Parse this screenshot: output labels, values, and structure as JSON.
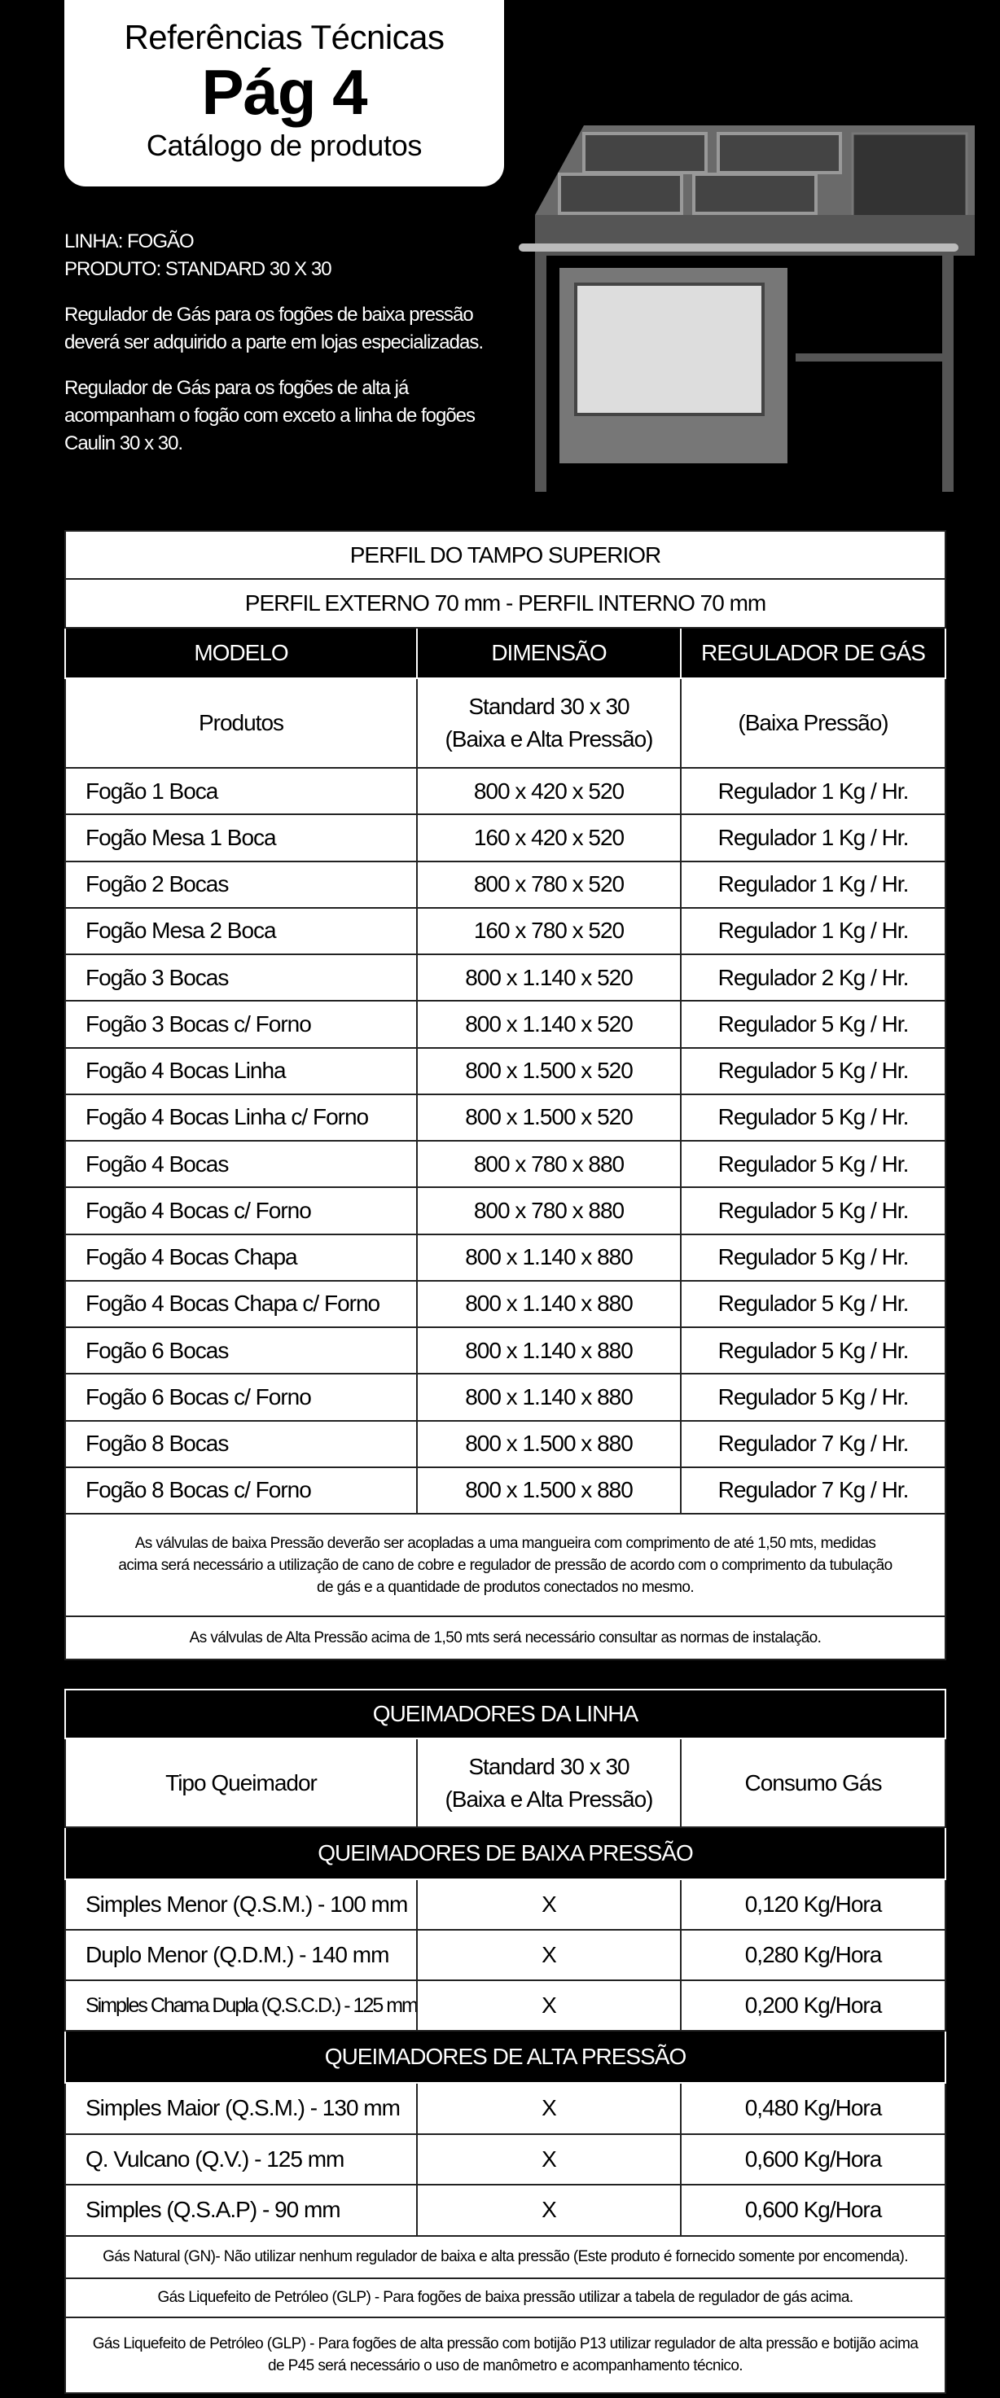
{
  "header": {
    "line1": "Referências Técnicas",
    "line2": "Pág 4",
    "line3": "Catálogo de produtos"
  },
  "intro": {
    "linha": "LINHA: FOGÃO",
    "produto": "PRODUTO: STANDARD 30 X 30",
    "p1": "Regulador de Gás para os fogões de baixa pressão deverá ser adquirido a parte em lojas especializadas.",
    "p2": "Regulador de Gás para os fogões de alta já acompanham o fogão com exceto a linha de fogões Caulin 30 x 30."
  },
  "table1": {
    "title": "PERFIL DO TAMPO SUPERIOR",
    "subtitle": "PERFIL EXTERNO 70 mm - PERFIL INTERNO 70 mm",
    "headers": [
      "MODELO",
      "DIMENSÃO",
      "REGULADOR DE GÁS"
    ],
    "subheaders": [
      "Produtos",
      "Standard 30 x 30",
      "(Baixa e Alta Pressão)",
      "(Baixa Pressão)"
    ],
    "rows": [
      [
        "Fogão 1 Boca",
        "800 x 420 x 520",
        "Regulador 1 Kg / Hr."
      ],
      [
        "Fogão Mesa 1 Boca",
        "160 x 420 x 520",
        "Regulador 1 Kg / Hr."
      ],
      [
        "Fogão 2 Bocas",
        "800 x 780 x 520",
        "Regulador 1 Kg / Hr."
      ],
      [
        "Fogão Mesa 2 Boca",
        "160 x 780 x 520",
        "Regulador 1 Kg / Hr."
      ],
      [
        "Fogão 3 Bocas",
        "800 x 1.140 x 520",
        "Regulador 2 Kg / Hr."
      ],
      [
        "Fogão 3 Bocas  c/ Forno",
        "800 x 1.140 x 520",
        "Regulador 5 Kg / Hr."
      ],
      [
        "Fogão 4 Bocas Linha",
        "800 x 1.500 x 520",
        "Regulador 5 Kg / Hr."
      ],
      [
        "Fogão 4 Bocas Linha  c/ Forno",
        "800 x 1.500 x 520",
        "Regulador 5 Kg / Hr."
      ],
      [
        "Fogão 4 Bocas",
        "800 x 780 x 880",
        "Regulador 5 Kg / Hr."
      ],
      [
        "Fogão 4 Bocas  c/ Forno",
        "800 x 780 x 880",
        "Regulador 5 Kg / Hr."
      ],
      [
        "Fogão 4 Bocas  Chapa",
        "800 x 1.140 x 880",
        "Regulador 5 Kg / Hr."
      ],
      [
        "Fogão 4 Bocas  Chapa  c/ Forno",
        "800 x 1.140 x 880",
        "Regulador 5 Kg / Hr."
      ],
      [
        "Fogão 6 Bocas",
        "800 x 1.140 x 880",
        "Regulador 5 Kg / Hr."
      ],
      [
        "Fogão 6 Bocas  c/ Forno",
        "800 x 1.140 x 880",
        "Regulador 5 Kg / Hr."
      ],
      [
        "Fogão 8 Bocas",
        "800 x 1.500 x 880",
        "Regulador 7 Kg / Hr."
      ],
      [
        "Fogão 8 Bocas  c/ Forno",
        "800 x 1.500 x 880",
        "Regulador 7 Kg / Hr."
      ]
    ],
    "note1": "As válvulas de baixa Pressão deverão ser acopladas a uma mangueira com comprimento de até 1,50 mts, medidas acima será necessário a utilização de cano de cobre e regulador de pressão de acordo com o comprimento da tubulação de gás e a quantidade de produtos conectados no mesmo.",
    "note2": "As válvulas de Alta Pressão acima de 1,50 mts será necessário consultar as normas de instalação."
  },
  "table2": {
    "title": "QUEIMADORES DA LINHA",
    "headers": [
      "Tipo Queimador",
      "Standard 30 x 30",
      "(Baixa e Alta Pressão)",
      "Consumo Gás"
    ],
    "section_low": "QUEIMADORES DE BAIXA PRESSÃO",
    "rows_low": [
      [
        "Simples Menor (Q.S.M.) - 100 mm",
        "X",
        "0,120 Kg/Hora"
      ],
      [
        "Duplo Menor (Q.D.M.) - 140 mm",
        "X",
        "0,280 Kg/Hora"
      ],
      [
        "Simples Chama Dupla (Q.S.C.D.) - 125 mm",
        "X",
        "0,200 Kg/Hora"
      ]
    ],
    "section_high": "QUEIMADORES DE ALTA PRESSÃO",
    "rows_high": [
      [
        "Simples Maior (Q.S.M.) - 130 mm",
        "X",
        "0,480 Kg/Hora"
      ],
      [
        "Q. Vulcano (Q.V.) - 125 mm",
        "X",
        "0,600 Kg/Hora"
      ],
      [
        "Simples (Q.S.A.P) - 90 mm",
        "X",
        "0,600 Kg/Hora"
      ]
    ],
    "note1": "Gás Natural (GN)- Não utilizar nenhum regulador de baixa e alta pressão  (Este produto é fornecido somente por encomenda).",
    "note2": "Gás Liquefeito de Petróleo (GLP) - Para fogões de baixa pressão utilizar a tabela de regulador de gás acima.",
    "note3": "Gás Liquefeito de Petróleo (GLP) - Para fogões de alta pressão com botijão P13 utilizar regulador de alta pressão e botijão acima de P45 será necessário o uso de manômetro e acompanhamento técnico."
  }
}
